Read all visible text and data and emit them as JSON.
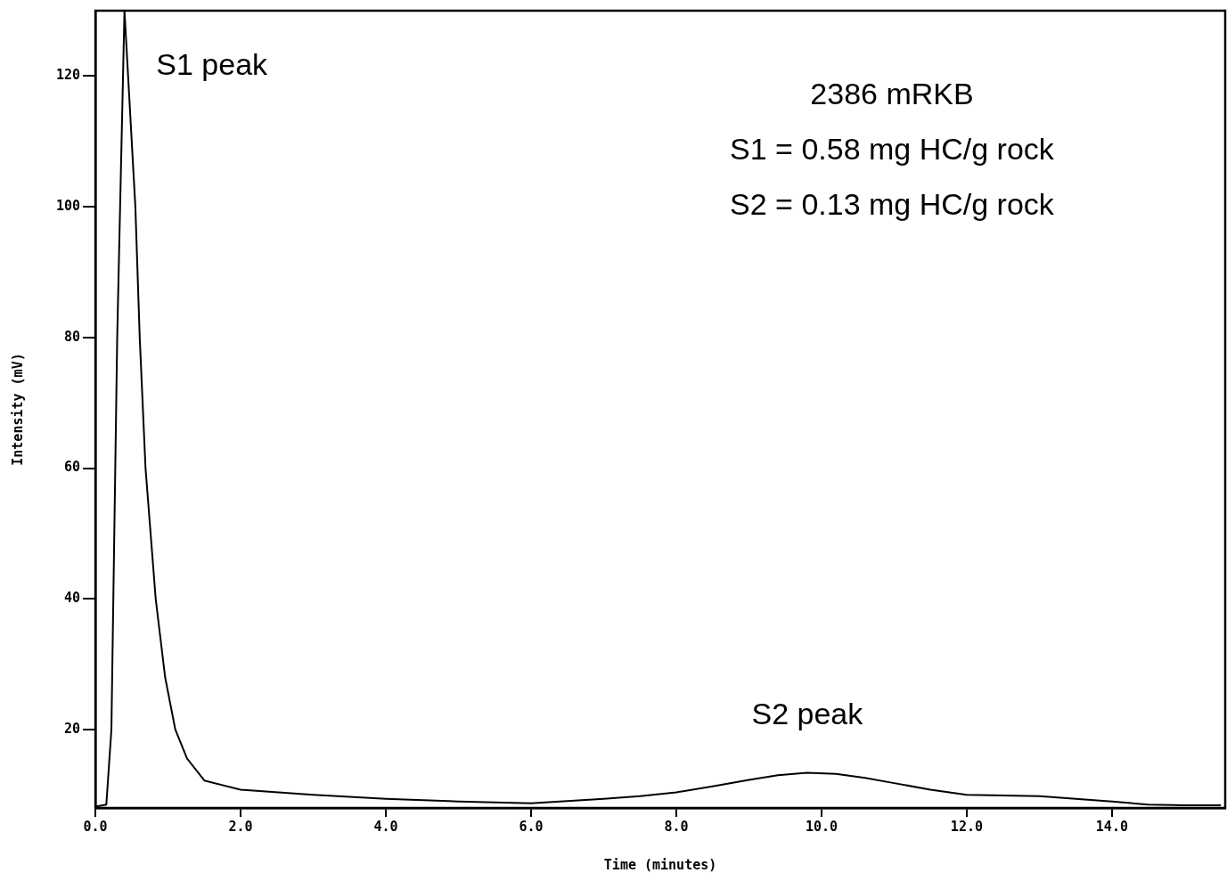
{
  "chart_data": {
    "type": "line",
    "xlabel": "Time (minutes)",
    "ylabel": "Intensity (mV)",
    "x": [
      0.0,
      0.15,
      0.22,
      0.3,
      0.4,
      0.55,
      0.61,
      0.69,
      0.83,
      0.96,
      1.1,
      1.26,
      1.5,
      2.0,
      3.0,
      4.0,
      5.0,
      6.0,
      7.0,
      7.5,
      8.0,
      8.5,
      9.0,
      9.4,
      9.8,
      10.2,
      10.6,
      11.0,
      11.5,
      12.0,
      13.0,
      13.5,
      14.0,
      14.5,
      15.0,
      15.5
    ],
    "series": [
      {
        "color": "#000000",
        "values": [
          8.2,
          8.5,
          20,
          80,
          130,
          100,
          80,
          60,
          40,
          28,
          20,
          15.6,
          12.2,
          10.8,
          10.0,
          9.4,
          9.0,
          8.7,
          9.4,
          9.8,
          10.4,
          11.3,
          12.3,
          13.0,
          13.4,
          13.2,
          12.6,
          11.8,
          10.8,
          10.0,
          9.8,
          9.4,
          9.0,
          8.5,
          8.4,
          8.4
        ]
      }
    ],
    "xlim": [
      0,
      15.56
    ],
    "ylim": [
      8,
      130
    ],
    "xticks": [
      {
        "value": 0,
        "label": "0.0"
      },
      {
        "value": 2,
        "label": "2.0"
      },
      {
        "value": 4,
        "label": "4.0"
      },
      {
        "value": 6,
        "label": "6.0"
      },
      {
        "value": 8,
        "label": "8.0"
      },
      {
        "value": 10,
        "label": "10.0"
      },
      {
        "value": 12,
        "label": "12.0"
      },
      {
        "value": 14,
        "label": "14.0"
      }
    ],
    "yticks": [
      20,
      40,
      60,
      80,
      100,
      120
    ],
    "annotations": [
      "S1 peak",
      "S2 peak",
      "2386 mRKB",
      "S1 = 0.58 mg HC/g rock",
      "S2 = 0.13 mg HC/g rock"
    ],
    "grid": false,
    "legend": false,
    "marker": "none",
    "line_style": "solid"
  }
}
